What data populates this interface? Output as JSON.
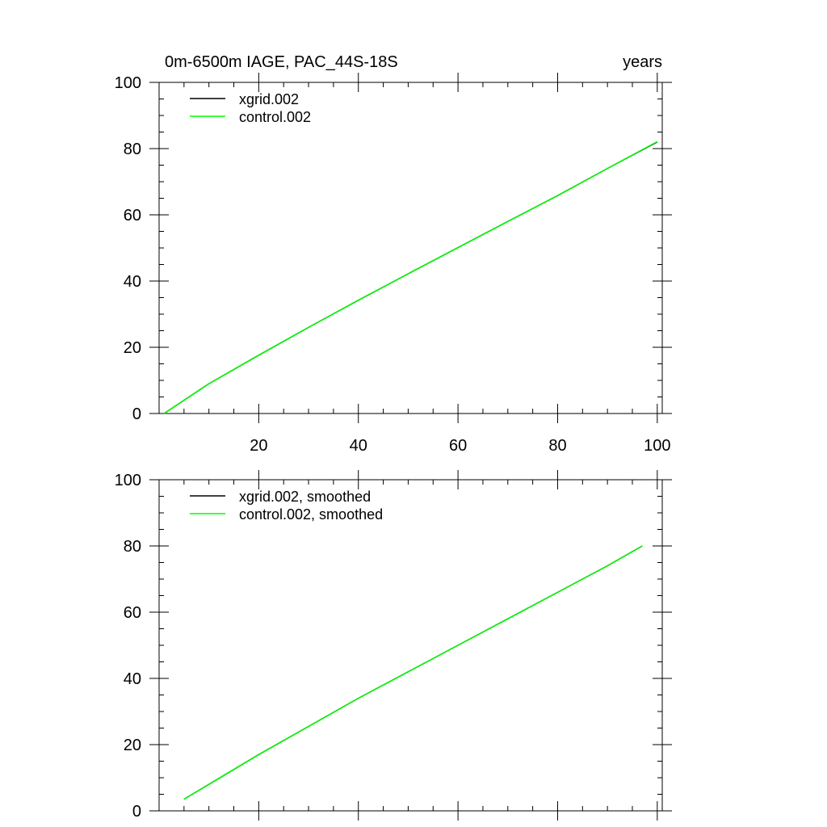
{
  "chart_data": [
    {
      "type": "line",
      "title": "0m-6500m IAGE, PAC_44S-18S",
      "units_label": "years",
      "xlim": [
        0,
        101
      ],
      "ylim": [
        0,
        100
      ],
      "x_ticks": [
        20,
        40,
        60,
        80,
        100
      ],
      "y_ticks": [
        0,
        20,
        40,
        60,
        80,
        100
      ],
      "grid": false,
      "legend": "top-left",
      "series": [
        {
          "name": "xgrid.002",
          "color": "#000000",
          "x": [
            1,
            10,
            20,
            30,
            40,
            50,
            60,
            70,
            80,
            90,
            100
          ],
          "y": [
            0,
            9,
            17.6,
            26,
            34.2,
            42.2,
            50.1,
            58,
            65.8,
            74,
            82
          ]
        },
        {
          "name": "control.002",
          "color": "#00ff00",
          "x": [
            1,
            10,
            20,
            30,
            40,
            50,
            60,
            70,
            80,
            90,
            100
          ],
          "y": [
            0,
            9,
            17.6,
            26,
            34.2,
            42.2,
            50.1,
            58,
            65.8,
            74,
            82.1
          ]
        }
      ]
    },
    {
      "type": "line",
      "xlim": [
        0,
        101
      ],
      "ylim": [
        0,
        100
      ],
      "x_ticks": [
        20,
        40,
        60,
        80,
        100
      ],
      "y_ticks": [
        0,
        20,
        40,
        60,
        80,
        100
      ],
      "grid": false,
      "legend": "top-left",
      "series": [
        {
          "name": "xgrid.002, smoothed",
          "color": "#000000",
          "x": [
            5,
            10,
            20,
            30,
            40,
            50,
            60,
            70,
            80,
            90,
            97
          ],
          "y": [
            3.5,
            8,
            17,
            25.5,
            34,
            42,
            50,
            58,
            66,
            74,
            80
          ]
        },
        {
          "name": "control.002, smoothed",
          "color": "#00ff00",
          "x": [
            5,
            10,
            20,
            30,
            40,
            50,
            60,
            70,
            80,
            90,
            97
          ],
          "y": [
            3.5,
            8,
            17,
            25.5,
            34,
            42,
            50,
            58,
            66,
            74,
            80
          ]
        }
      ]
    }
  ]
}
